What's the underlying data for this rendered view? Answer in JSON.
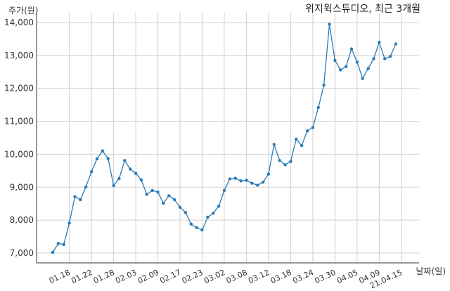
{
  "chart_data": {
    "type": "line",
    "title": "위지윅스튜디오, 최근 3개월",
    "ylabel": "주가(원)",
    "xlabel": "날짜(일)",
    "ylim": [
      6700,
      14300
    ],
    "yticks": [
      7000,
      8000,
      9000,
      10000,
      11000,
      12000,
      13000,
      14000
    ],
    "ytick_labels": [
      "7,000",
      "8,000",
      "9,000",
      "10,000",
      "11,000",
      "12,000",
      "13,000",
      "14,000"
    ],
    "grid": true,
    "line_color": "#2a7bb8",
    "xtick_labels": [
      "01.18",
      "01.22",
      "01.28",
      "02.03",
      "02.09",
      "02.17",
      "02.23",
      "03.02",
      "03.08",
      "03.12",
      "03.18",
      "03.24",
      "03.30",
      "04.05",
      "04.09",
      "21.04.15"
    ],
    "xtick_index": [
      3,
      7,
      11,
      15,
      19,
      23,
      27,
      31,
      35,
      39,
      43,
      47,
      51,
      55,
      59,
      63
    ],
    "values": [
      7020,
      7290,
      7260,
      7910,
      8710,
      8620,
      9010,
      9470,
      9860,
      10100,
      9870,
      9050,
      9260,
      9810,
      9550,
      9420,
      9220,
      8780,
      8900,
      8850,
      8510,
      8740,
      8620,
      8390,
      8230,
      7880,
      7770,
      7700,
      8090,
      8210,
      8420,
      8900,
      9250,
      9270,
      9190,
      9210,
      9120,
      9060,
      9150,
      9400,
      10300,
      9810,
      9680,
      9780,
      10460,
      10260,
      10710,
      10810,
      11420,
      12100,
      13950,
      12850,
      12560,
      12660,
      13200,
      12800,
      12300,
      12600,
      12900,
      13400,
      12900,
      12970,
      13350
    ]
  }
}
